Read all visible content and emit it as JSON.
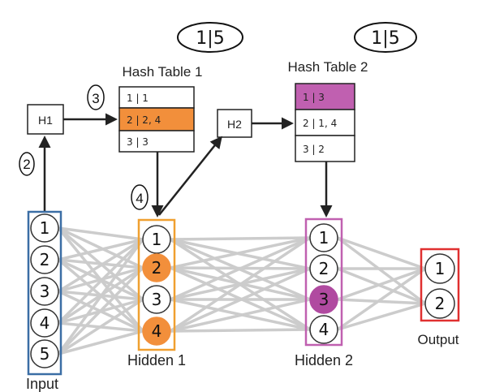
{
  "diagram": {
    "badges": [
      "1|5",
      "1|5"
    ],
    "hash_functions": [
      "H1",
      "H2"
    ],
    "steps": [
      "2",
      "3",
      "4"
    ],
    "hash_table_1": {
      "title": "Hash Table 1",
      "rows": [
        "1 | 1",
        "2 | 2, 4",
        "3 | 3"
      ],
      "highlight_row": 1,
      "highlight_color": "#f28f3b"
    },
    "hash_table_2": {
      "title": "Hash Table 2",
      "rows": [
        "1 | 3",
        "2 | 1, 4",
        "3 | 2"
      ],
      "highlight_row": 0,
      "highlight_color": "#c060b0"
    },
    "layers": {
      "input": {
        "label": "Input",
        "nodes": [
          "1",
          "2",
          "3",
          "4",
          "5"
        ],
        "color": "#3b6ea5"
      },
      "hidden1": {
        "label": "Hidden 1",
        "nodes": [
          "1",
          "2",
          "3",
          "4"
        ],
        "active": [
          1,
          3
        ],
        "color": "#f0a030",
        "active_fill": "#f28f3b"
      },
      "hidden2": {
        "label": "Hidden 2",
        "nodes": [
          "1",
          "2",
          "3",
          "4"
        ],
        "active": [
          2
        ],
        "color": "#c060b0",
        "active_fill": "#b04aa0"
      },
      "output": {
        "label": "Output",
        "nodes": [
          "1",
          "2"
        ],
        "color": "#e03030"
      }
    },
    "colors": {
      "edge": "#cccccc",
      "arrow": "#222222"
    }
  }
}
